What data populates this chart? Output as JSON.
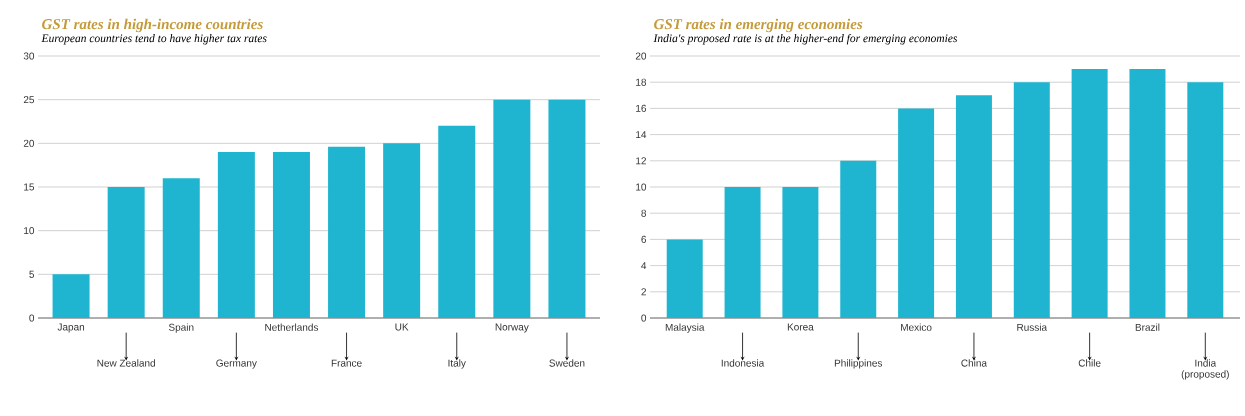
{
  "chart_data": [
    {
      "type": "bar",
      "title": "GST rates in high-income countries",
      "subtitle": "European countries tend to have higher tax rates",
      "categories": [
        "Japan",
        "New Zealand",
        "Spain",
        "Germany",
        "Netherlands",
        "France",
        "UK",
        "Italy",
        "Norway",
        "Sweden"
      ],
      "values": [
        5,
        15,
        16,
        19,
        19,
        19.6,
        20,
        22,
        25,
        25
      ],
      "color": "#1fb5d0",
      "ylim": [
        0,
        30
      ],
      "yticks": [
        0,
        5,
        10,
        15,
        20,
        25,
        30
      ],
      "grid": "y"
    },
    {
      "type": "bar",
      "title": "GST rates in emerging economies",
      "subtitle": "India's proposed rate is at the higher-end for emerging economies",
      "categories": [
        "Malaysia",
        "Indonesia",
        "Korea",
        "Philippines",
        "Mexico",
        "China",
        "Russia",
        "Chile",
        "Brazil",
        "India (proposed)"
      ],
      "values": [
        6,
        10,
        10,
        12,
        16,
        17,
        18,
        19,
        19,
        18
      ],
      "color": "#1fb5d0",
      "ylim": [
        0,
        20
      ],
      "yticks": [
        0,
        2,
        4,
        6,
        8,
        10,
        12,
        14,
        16,
        18,
        20
      ],
      "grid": "y"
    }
  ]
}
